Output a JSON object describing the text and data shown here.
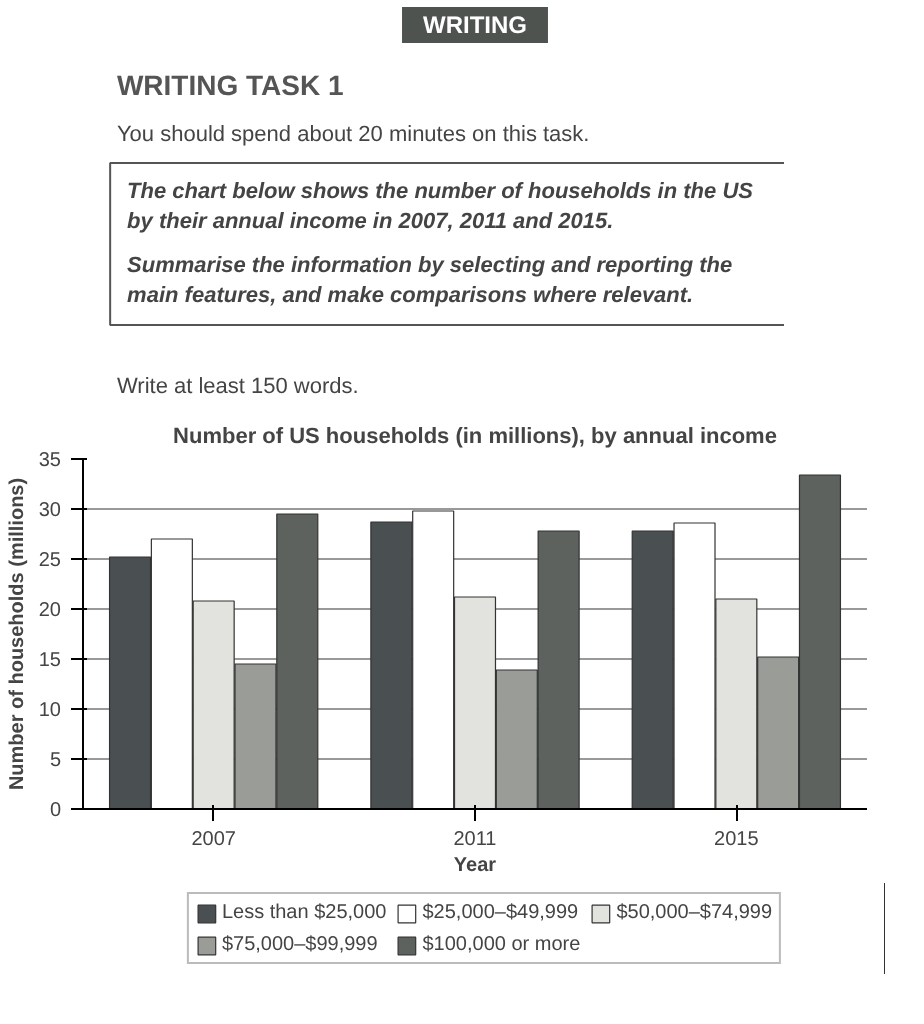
{
  "chart_data": {
    "type": "bar",
    "title": "Number of US households (in millions), by annual income",
    "xlabel": "Year",
    "ylabel": "Number of households (millions)",
    "annotations": [
      "WRITING",
      "WRITING TASK 1",
      "You should spend about 20 minutes on this task.",
      "The chart below shows the number of households in the US by their annual income in 2007, 2011 and 2015.",
      "Summarise the information by selecting and reporting the main features, and make comparisons where relevant.",
      "Write at least 150 words."
    ],
    "categories": [
      "2007",
      "2011",
      "2015"
    ],
    "series": [
      {
        "name": "Less than $25,000",
        "color": "#4a4f52",
        "values": [
          25.2,
          28.7,
          27.8
        ]
      },
      {
        "name": "$25,000–$49,999",
        "color": "#ffffff",
        "values": [
          27,
          29.8,
          28.6
        ]
      },
      {
        "name": "$50,000–$74,999",
        "color": "#e2e2de",
        "values": [
          20.8,
          21.2,
          21
        ]
      },
      {
        "name": "$75,000–$99,999",
        "color": "#9a9c98",
        "values": [
          14.5,
          13.9,
          15.2
        ]
      },
      {
        "name": "$100,000 or more",
        "color": "#5e625f",
        "values": [
          29.5,
          27.8,
          33.4
        ]
      }
    ],
    "ylim": [
      0,
      35
    ],
    "yticks": [
      0,
      5,
      10,
      15,
      20,
      25,
      30,
      35
    ],
    "grid": "y",
    "legend": "bottom"
  }
}
